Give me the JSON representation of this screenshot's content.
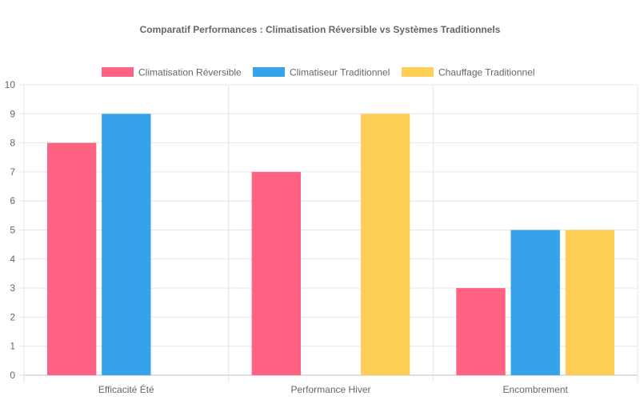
{
  "chart_data": {
    "type": "bar",
    "title": "Comparatif Performances : Climatisation Réversible vs Systèmes Traditionnels",
    "categories": [
      "Efficacité Été",
      "Performance Hiver",
      "Encombrement"
    ],
    "series": [
      {
        "name": "Climatisation Réversible",
        "values": [
          8,
          7,
          3
        ],
        "color": "#ff6384"
      },
      {
        "name": "Climatiseur Traditionnel",
        "values": [
          9,
          0,
          5
        ],
        "color": "#36a2eb"
      },
      {
        "name": "Chauffage Traditionnel",
        "values": [
          0,
          9,
          5
        ],
        "color": "#ffce56"
      }
    ],
    "ylim": [
      0,
      10
    ],
    "yticks": [
      "0",
      "1",
      "2",
      "3",
      "4",
      "5",
      "6",
      "7",
      "8",
      "9",
      "10"
    ],
    "legend": "top",
    "grid": true
  }
}
